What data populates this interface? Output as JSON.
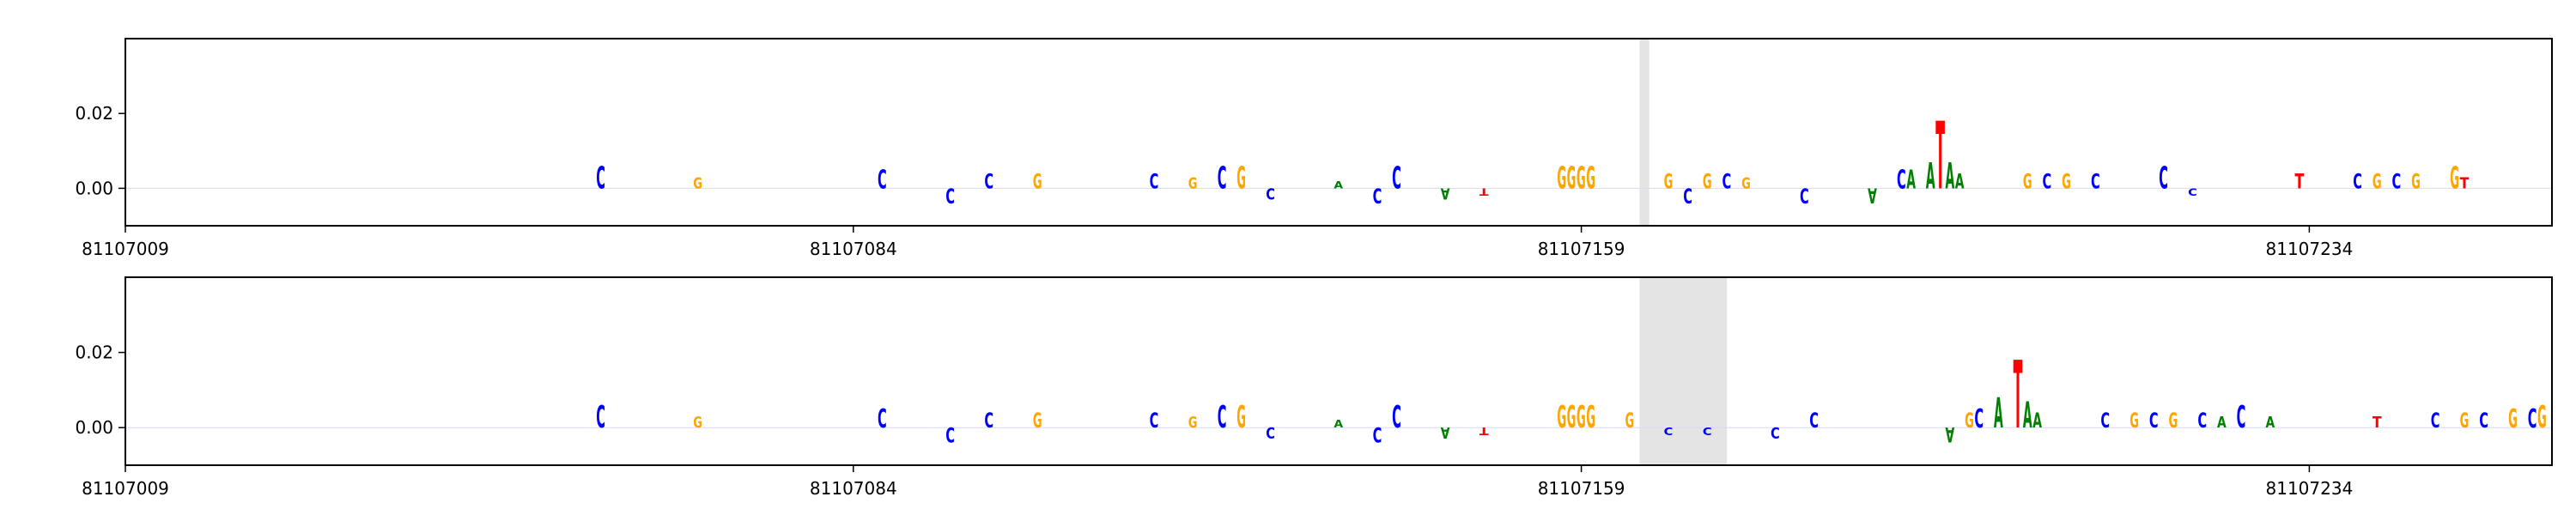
{
  "chart_data": [
    {
      "type": "logo",
      "x": [
        81107058,
        81107068,
        81107087,
        81107094,
        81107098,
        81107103,
        81107115,
        81107119,
        81107122,
        81107124,
        81107127,
        81107134,
        81107138,
        81107140,
        81107145,
        81107149,
        81107157,
        81107158,
        81107159,
        81107160,
        81107168,
        81107170,
        81107172,
        81107174,
        81107176,
        81107182,
        81107189,
        81107192,
        81107193,
        81107195,
        81107196,
        81107197,
        81107198,
        81107205,
        81107207,
        81107209,
        81107212,
        81107219,
        81107222,
        81107233,
        81107239,
        81107241,
        81107243,
        81107245,
        81107249,
        81107250
      ],
      "letters": [
        "C",
        "G",
        "C",
        "C",
        "C",
        "G",
        "C",
        "G",
        "C",
        "G",
        "C",
        "A",
        "C",
        "C",
        "A",
        "T",
        "G",
        "G",
        "G",
        "G",
        "G",
        "C",
        "G",
        "C",
        "G",
        "C",
        "A",
        "C",
        "A",
        "A",
        "T",
        "A",
        "A",
        "G",
        "C",
        "G",
        "C",
        "C",
        "C",
        "T",
        "C",
        "G",
        "C",
        "G",
        "G",
        "T"
      ],
      "values": [
        0.006,
        0.003,
        0.005,
        -0.004,
        0.004,
        0.004,
        0.004,
        0.003,
        0.006,
        0.006,
        -0.003,
        0.002,
        -0.004,
        0.006,
        -0.003,
        -0.002,
        0.006,
        0.006,
        0.006,
        0.006,
        0.004,
        -0.004,
        0.004,
        0.004,
        0.003,
        -0.004,
        -0.004,
        0.005,
        0.005,
        0.007,
        0.018,
        0.007,
        0.004,
        0.004,
        0.004,
        0.004,
        0.004,
        0.006,
        -0.002,
        0.004,
        0.004,
        0.004,
        0.004,
        0.004,
        0.006,
        0.003
      ],
      "colors": {
        "A": "#008000",
        "C": "#0000ff",
        "G": "#ffa500",
        "T": "#ff0000"
      },
      "highlight": [
        81107165,
        81107166
      ],
      "xlim": [
        81107009,
        81107259
      ],
      "xticks": [
        81107009,
        81107084,
        81107159,
        81107234
      ],
      "ylim": [
        -0.01,
        0.04
      ],
      "yticks": [
        {
          "value": 0,
          "label": "0.00"
        },
        0.02
      ]
    },
    {
      "type": "logo",
      "x": [
        81107058,
        81107068,
        81107087,
        81107094,
        81107098,
        81107103,
        81107115,
        81107119,
        81107122,
        81107124,
        81107127,
        81107134,
        81107138,
        81107140,
        81107145,
        81107149,
        81107157,
        81107158,
        81107159,
        81107160,
        81107164,
        81107168,
        81107172,
        81107179,
        81107183,
        81107197,
        81107199,
        81107200,
        81107202,
        81107204,
        81107205,
        81107206,
        81107213,
        81107216,
        81107218,
        81107220,
        81107223,
        81107225,
        81107227,
        81107230,
        81107241,
        81107247,
        81107250,
        81107252,
        81107255,
        81107257,
        81107258
      ],
      "letters": [
        "C",
        "G",
        "C",
        "C",
        "C",
        "G",
        "C",
        "G",
        "C",
        "G",
        "C",
        "A",
        "C",
        "C",
        "A",
        "T",
        "G",
        "G",
        "G",
        "G",
        "G",
        "C",
        "C",
        "C",
        "C",
        "A",
        "G",
        "C",
        "A",
        "T",
        "A",
        "A",
        "C",
        "G",
        "C",
        "G",
        "C",
        "A",
        "C",
        "A",
        "T",
        "C",
        "G",
        "C",
        "G",
        "C",
        "G"
      ],
      "values": [
        0.006,
        0.003,
        0.005,
        -0.004,
        0.004,
        0.004,
        0.004,
        0.003,
        0.006,
        0.006,
        -0.003,
        0.002,
        -0.004,
        0.006,
        -0.003,
        -0.002,
        0.006,
        0.006,
        0.006,
        0.006,
        0.004,
        -0.002,
        -0.002,
        -0.003,
        0.004,
        -0.004,
        0.004,
        0.005,
        0.008,
        0.018,
        0.007,
        0.004,
        0.004,
        0.004,
        0.004,
        0.004,
        0.004,
        0.003,
        0.006,
        0.003,
        0.003,
        0.004,
        0.004,
        0.004,
        0.005,
        0.005,
        0.006
      ],
      "colors": {
        "A": "#008000",
        "C": "#0000ff",
        "G": "#ffa500",
        "T": "#ff0000"
      },
      "highlight": [
        81107165,
        81107174
      ],
      "xlim": [
        81107009,
        81107259
      ],
      "xticks": [
        81107009,
        81107084,
        81107159,
        81107234
      ],
      "ylim": [
        -0.01,
        0.04
      ],
      "yticks": [
        {
          "value": 0,
          "label": "0.00"
        },
        0.02
      ]
    }
  ]
}
